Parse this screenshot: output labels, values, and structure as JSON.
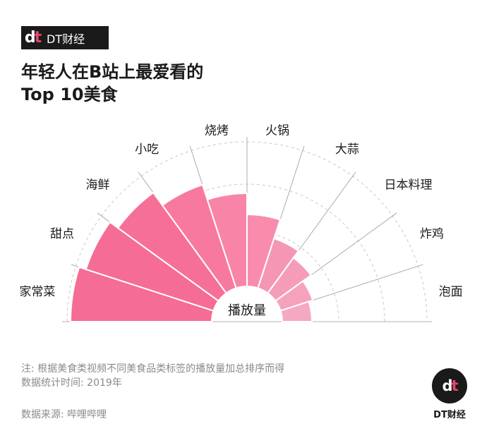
{
  "brand": {
    "mark": "dt",
    "name": "DT财经"
  },
  "title_line1": "年轻人在B站上最爱看的",
  "title_line2": "Top 10美食",
  "center_label": "播放量",
  "notes": {
    "line1": "注: 根据美食类视频不同美食品类标签的播放量加总排序而得",
    "line2": "数据统计时间: 2019年",
    "source": "数据来源: 哔哩哔哩"
  },
  "chart_data": {
    "type": "bar",
    "subtype": "polar-radial-bar",
    "title": "年轻人在B站上最爱看的 Top 10美食",
    "categories": [
      "家常菜",
      "甜点",
      "海鲜",
      "小吃",
      "烧烤",
      "火锅",
      "大蒜",
      "日本料理",
      "炸鸡",
      "泡面"
    ],
    "values": [
      100,
      95,
      88,
      77,
      66,
      51,
      37,
      31,
      24,
      21
    ],
    "value_label": "播放量",
    "value_unit": "relative (no axis values printed)",
    "grid": true,
    "colors": [
      "#f56c95",
      "#f56c95",
      "#f66f97",
      "#f77a9e",
      "#f885a8",
      "#f98cad",
      "#f596b5",
      "#f59cb9",
      "#f5a2bd",
      "#f5a8c1"
    ]
  }
}
